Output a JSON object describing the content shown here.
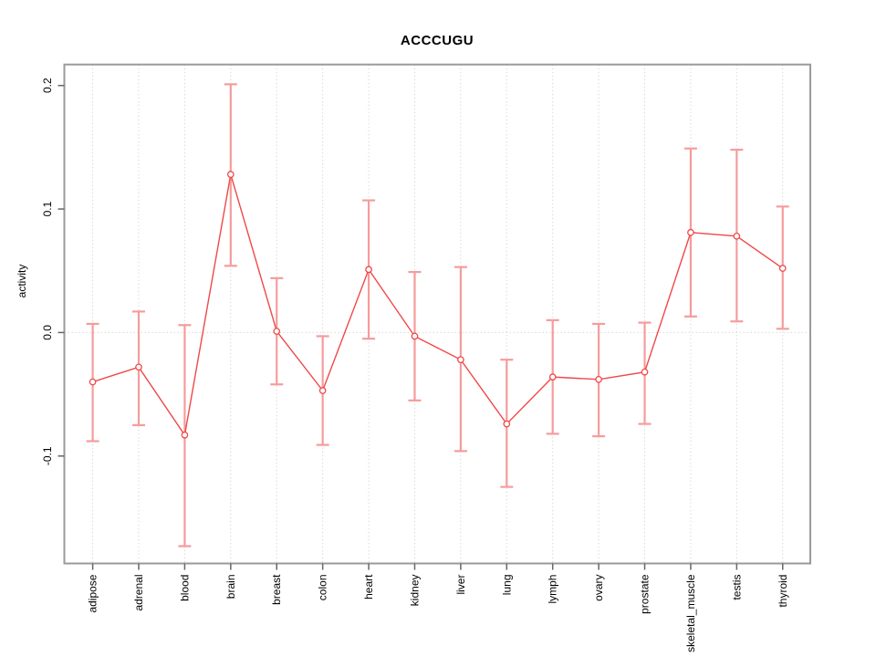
{
  "chart_data": {
    "type": "line",
    "subtype": "points-with-error-bars",
    "title": "ACCCUGU",
    "xlabel": "",
    "ylabel": "activity",
    "categories": [
      "adipose",
      "adrenal",
      "blood",
      "brain",
      "breast",
      "colon",
      "heart",
      "kidney",
      "liver",
      "lung",
      "lymph",
      "ovary",
      "prostate",
      "skeletal_muscle",
      "testis",
      "thyroid"
    ],
    "series": [
      {
        "name": "activity",
        "values": [
          -0.04,
          -0.028,
          -0.083,
          0.128,
          0.001,
          -0.047,
          0.051,
          -0.003,
          -0.022,
          -0.074,
          -0.036,
          -0.038,
          -0.032,
          0.081,
          0.078,
          0.052
        ],
        "upper": [
          0.007,
          0.017,
          0.006,
          0.201,
          0.044,
          -0.003,
          0.107,
          0.049,
          0.053,
          -0.022,
          0.01,
          0.007,
          0.008,
          0.149,
          0.148,
          0.102
        ],
        "lower": [
          -0.088,
          -0.075,
          -0.173,
          0.054,
          -0.042,
          -0.091,
          -0.005,
          -0.055,
          -0.096,
          -0.125,
          -0.082,
          -0.084,
          -0.074,
          0.013,
          0.009,
          0.003
        ]
      }
    ],
    "y_ticks": {
      "values": [
        -0.1,
        0.0,
        0.1,
        0.2
      ],
      "labels": [
        "-0.1",
        "0.0",
        "0.1",
        "0.2"
      ]
    },
    "ylim": [
      -0.187,
      0.217
    ],
    "grid": "vertical dotted line per category; horizontal dotted line at y=0",
    "legend": "none",
    "colors": {
      "line": "#f04848",
      "point_stroke": "#f04848",
      "point_fill": "#ffffff",
      "error_bar": "#f59c9c",
      "grid": "#d9d9d9",
      "zero_line": "#d9d9d9",
      "box": "#9a9a9a",
      "tick": "#666666",
      "text": "#000000"
    }
  }
}
